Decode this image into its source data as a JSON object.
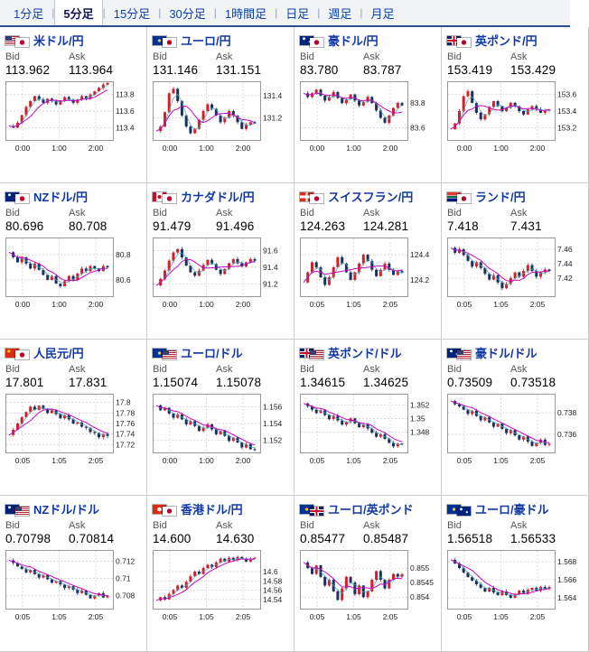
{
  "tabs": {
    "separator": "|",
    "items": [
      {
        "label": "1分足",
        "active": false
      },
      {
        "label": "5分足",
        "active": true
      },
      {
        "label": "15分足",
        "active": false
      },
      {
        "label": "30分足",
        "active": false
      },
      {
        "label": "1時間足",
        "active": false
      },
      {
        "label": "日足",
        "active": false
      },
      {
        "label": "週足",
        "active": false
      },
      {
        "label": "月足",
        "active": false
      }
    ]
  },
  "labels": {
    "bid": "Bid",
    "ask": "Ask"
  },
  "panels": [
    {
      "pair": "米ドル/円",
      "flags": [
        "us",
        "jp"
      ],
      "bid": "113.962",
      "ask": "113.964",
      "chart": {
        "type": "candlestick",
        "y_ticks": [
          "113.8",
          "113.6",
          "113.4"
        ],
        "x_ticks": [
          "0:00",
          "1:00",
          "2:00"
        ],
        "ylim": [
          113.25,
          113.95
        ],
        "closes": [
          113.42,
          113.4,
          113.46,
          113.55,
          113.65,
          113.72,
          113.78,
          113.74,
          113.7,
          113.75,
          113.72,
          113.68,
          113.73,
          113.77,
          113.74,
          113.7,
          113.74,
          113.78,
          113.75,
          113.8,
          113.84,
          113.88,
          113.92,
          113.94
        ]
      }
    },
    {
      "pair": "ユーロ/円",
      "flags": [
        "eu",
        "jp"
      ],
      "bid": "131.146",
      "ask": "131.151",
      "chart": {
        "type": "candlestick",
        "y_ticks": [
          "131.4",
          "131.2"
        ],
        "x_ticks": [
          "0:00",
          "1:00",
          "2:00"
        ],
        "ylim": [
          131.0,
          131.52
        ],
        "closes": [
          131.08,
          131.12,
          131.25,
          131.42,
          131.46,
          131.35,
          131.22,
          131.12,
          131.06,
          131.1,
          131.18,
          131.26,
          131.32,
          131.28,
          131.22,
          131.16,
          131.2,
          131.26,
          131.22,
          131.16,
          131.1,
          131.14,
          131.16,
          131.15
        ]
      }
    },
    {
      "pair": "豪ドル/円",
      "flags": [
        "au",
        "jp"
      ],
      "bid": "83.780",
      "ask": "83.787",
      "chart": {
        "type": "candlestick",
        "y_ticks": [
          "83.8",
          "83.6"
        ],
        "x_ticks": [
          "0:00",
          "1:00",
          "2:00"
        ],
        "ylim": [
          83.5,
          83.97
        ],
        "closes": [
          83.88,
          83.85,
          83.88,
          83.91,
          83.86,
          83.82,
          83.85,
          83.89,
          83.84,
          83.8,
          83.83,
          83.87,
          83.82,
          83.78,
          83.81,
          83.85,
          83.8,
          83.74,
          83.68,
          83.64,
          83.7,
          83.76,
          83.8,
          83.78
        ]
      }
    },
    {
      "pair": "英ポンド/円",
      "flags": [
        "gb",
        "jp"
      ],
      "bid": "153.419",
      "ask": "153.429",
      "chart": {
        "type": "candlestick",
        "y_ticks": [
          "153.6",
          "153.4",
          "153.2"
        ],
        "x_ticks": [
          "0:00",
          "1:00",
          "2:00"
        ],
        "ylim": [
          153.05,
          153.75
        ],
        "closes": [
          153.18,
          153.25,
          153.4,
          153.58,
          153.64,
          153.5,
          153.38,
          153.3,
          153.36,
          153.45,
          153.52,
          153.46,
          153.4,
          153.44,
          153.5,
          153.46,
          153.4,
          153.36,
          153.42,
          153.46,
          153.42,
          153.38,
          153.41,
          153.42
        ]
      }
    },
    {
      "pair": "NZドル/円",
      "flags": [
        "nz",
        "jp"
      ],
      "bid": "80.696",
      "ask": "80.708",
      "chart": {
        "type": "candlestick",
        "y_ticks": [
          "80.8",
          "80.6"
        ],
        "x_ticks": [
          "0:00",
          "1:00",
          "2:00"
        ],
        "ylim": [
          80.47,
          80.93
        ],
        "closes": [
          80.82,
          80.78,
          80.74,
          80.78,
          80.73,
          80.69,
          80.73,
          80.68,
          80.64,
          80.6,
          80.63,
          80.57,
          80.55,
          80.59,
          80.63,
          80.6,
          80.65,
          80.69,
          80.67,
          80.71,
          80.69,
          80.67,
          80.71,
          80.7
        ]
      }
    },
    {
      "pair": "カナダドル/円",
      "flags": [
        "ca",
        "jp"
      ],
      "bid": "91.479",
      "ask": "91.496",
      "chart": {
        "type": "candlestick",
        "y_ticks": [
          "91.6",
          "91.4",
          "91.2"
        ],
        "x_ticks": [
          "0:00",
          "1:00",
          "2:00"
        ],
        "ylim": [
          91.05,
          91.75
        ],
        "closes": [
          91.18,
          91.26,
          91.36,
          91.48,
          91.58,
          91.62,
          91.52,
          91.42,
          91.34,
          91.3,
          91.36,
          91.43,
          91.49,
          91.44,
          91.37,
          91.32,
          91.38,
          91.45,
          91.5,
          91.45,
          91.41,
          91.46,
          91.5,
          91.48
        ]
      }
    },
    {
      "pair": "スイスフラン/円",
      "flags": [
        "ch",
        "jp"
      ],
      "bid": "124.263",
      "ask": "124.281",
      "chart": {
        "type": "candlestick",
        "y_ticks": [
          "124.4",
          "124.2"
        ],
        "x_ticks": [
          "0:05",
          "1:05",
          "2:05"
        ],
        "ylim": [
          124.07,
          124.53
        ],
        "closes": [
          124.18,
          124.26,
          124.34,
          124.3,
          124.22,
          124.16,
          124.22,
          124.3,
          124.38,
          124.33,
          124.26,
          124.2,
          124.26,
          124.33,
          124.4,
          124.35,
          124.28,
          124.23,
          124.28,
          124.33,
          124.28,
          124.24,
          124.27,
          124.26
        ]
      }
    },
    {
      "pair": "ランド/円",
      "flags": [
        "za",
        "jp"
      ],
      "bid": "7.418",
      "ask": "7.431",
      "chart": {
        "type": "candlestick",
        "y_ticks": [
          "7.46",
          "7.44",
          "7.42"
        ],
        "x_ticks": [
          "0:05",
          "1:05",
          "2:05"
        ],
        "ylim": [
          7.395,
          7.475
        ],
        "closes": [
          7.462,
          7.455,
          7.46,
          7.452,
          7.444,
          7.436,
          7.442,
          7.434,
          7.426,
          7.418,
          7.424,
          7.414,
          7.406,
          7.412,
          7.42,
          7.428,
          7.422,
          7.43,
          7.438,
          7.43,
          7.422,
          7.428,
          7.432,
          7.43
        ]
      }
    },
    {
      "pair": "人民元/円",
      "flags": [
        "cn",
        "jp"
      ],
      "bid": "17.801",
      "ask": "17.831",
      "chart": {
        "type": "candlestick",
        "y_ticks": [
          "17.8",
          "17.78",
          "17.76",
          "17.74",
          "17.72"
        ],
        "x_ticks": [
          "0:05",
          "1:05",
          "2:05"
        ],
        "ylim": [
          17.705,
          17.815
        ],
        "closes": [
          17.738,
          17.748,
          17.76,
          17.772,
          17.782,
          17.792,
          17.786,
          17.794,
          17.788,
          17.78,
          17.786,
          17.778,
          17.77,
          17.776,
          17.768,
          17.76,
          17.762,
          17.754,
          17.752,
          17.744,
          17.742,
          17.734,
          17.74,
          17.736
        ]
      }
    },
    {
      "pair": "ユーロ/ドル",
      "flags": [
        "eu",
        "us"
      ],
      "bid": "1.15074",
      "ask": "1.15078",
      "chart": {
        "type": "candlestick",
        "y_ticks": [
          "1.156",
          "1.154",
          "1.152"
        ],
        "x_ticks": [
          "0:00",
          "1:00",
          "2:00"
        ],
        "ylim": [
          1.1505,
          1.1575
        ],
        "closes": [
          1.1562,
          1.1556,
          1.1559,
          1.1552,
          1.1547,
          1.1551,
          1.1545,
          1.1539,
          1.1543,
          1.1537,
          1.1531,
          1.1535,
          1.1539,
          1.1533,
          1.1527,
          1.1531,
          1.1525,
          1.1519,
          1.1523,
          1.1517,
          1.1511,
          1.1515,
          1.1509,
          1.1508
        ]
      }
    },
    {
      "pair": "英ポンド/ドル",
      "flags": [
        "gb",
        "us"
      ],
      "bid": "1.34615",
      "ask": "1.34625",
      "chart": {
        "type": "candlestick",
        "y_ticks": [
          "1.352",
          "1.35",
          "1.348"
        ],
        "x_ticks": [
          "0:05",
          "1:05",
          "2:05"
        ],
        "ylim": [
          1.345,
          1.3535
        ],
        "closes": [
          1.3522,
          1.3518,
          1.3513,
          1.3508,
          1.3512,
          1.3505,
          1.3499,
          1.3504,
          1.3497,
          1.3491,
          1.3495,
          1.35,
          1.3493,
          1.3487,
          1.3491,
          1.3485,
          1.3479,
          1.3473,
          1.3477,
          1.347,
          1.3464,
          1.3459,
          1.3463,
          1.3462
        ]
      }
    },
    {
      "pair": "豪ドル/ドル",
      "flags": [
        "au",
        "us"
      ],
      "bid": "0.73509",
      "ask": "0.73518",
      "chart": {
        "type": "candlestick",
        "y_ticks": [
          "0.738",
          "0.736"
        ],
        "x_ticks": [
          "0:05",
          "1:05",
          "2:05"
        ],
        "ylim": [
          0.7343,
          0.7397
        ],
        "closes": [
          0.7391,
          0.7388,
          0.7386,
          0.7383,
          0.7379,
          0.7382,
          0.7377,
          0.7373,
          0.7376,
          0.7371,
          0.7367,
          0.737,
          0.7365,
          0.7361,
          0.7364,
          0.7359,
          0.7355,
          0.7358,
          0.7353,
          0.7349,
          0.7352,
          0.7355,
          0.735,
          0.7351
        ]
      }
    },
    {
      "pair": "NZドル/ドル",
      "flags": [
        "nz",
        "us"
      ],
      "bid": "0.70798",
      "ask": "0.70814",
      "chart": {
        "type": "candlestick",
        "y_ticks": [
          "0.712",
          "0.71",
          "0.708"
        ],
        "x_ticks": [
          "0:05",
          "1:05",
          "2:05"
        ],
        "ylim": [
          0.7065,
          0.7132
        ],
        "closes": [
          0.7121,
          0.7118,
          0.7114,
          0.7111,
          0.7107,
          0.711,
          0.7105,
          0.7101,
          0.7104,
          0.7099,
          0.7095,
          0.7097,
          0.7093,
          0.7089,
          0.7091,
          0.7087,
          0.7083,
          0.7086,
          0.7081,
          0.7077,
          0.708,
          0.7083,
          0.7078,
          0.708
        ]
      }
    },
    {
      "pair": "香港ドル/円",
      "flags": [
        "hk",
        "jp"
      ],
      "bid": "14.600",
      "ask": "14.630",
      "chart": {
        "type": "candlestick",
        "y_ticks": [
          "14.6",
          "14.58",
          "14.56",
          "14.54"
        ],
        "x_ticks": [
          "0:05",
          "1:05",
          "2:05"
        ],
        "ylim": [
          14.52,
          14.645
        ],
        "closes": [
          14.538,
          14.545,
          14.54,
          14.552,
          14.56,
          14.57,
          14.565,
          14.578,
          14.59,
          14.6,
          14.595,
          14.608,
          14.615,
          14.61,
          14.62,
          14.628,
          14.622,
          14.63,
          14.625,
          14.632,
          14.628,
          14.622,
          14.628,
          14.63
        ]
      }
    },
    {
      "pair": "ユーロ/英ポンド",
      "flags": [
        "eu",
        "gb"
      ],
      "bid": "0.85477",
      "ask": "0.85487",
      "chart": {
        "type": "candlestick",
        "y_ticks": [
          "0.855",
          "0.8545",
          "0.854"
        ],
        "x_ticks": [
          "0:05",
          "1:05",
          "2:05"
        ],
        "ylim": [
          0.8536,
          0.8556
        ],
        "closes": [
          0.8552,
          0.855,
          0.8548,
          0.8551,
          0.8547,
          0.8544,
          0.8546,
          0.8542,
          0.8539,
          0.8543,
          0.8547,
          0.8545,
          0.8541,
          0.8544,
          0.854,
          0.8542,
          0.8546,
          0.8549,
          0.8546,
          0.8543,
          0.8546,
          0.8548,
          0.8547,
          0.8548
        ]
      }
    },
    {
      "pair": "ユーロ/豪ドル",
      "flags": [
        "eu",
        "au"
      ],
      "bid": "1.56518",
      "ask": "1.56533",
      "chart": {
        "type": "candlestick",
        "y_ticks": [
          "1.568",
          "1.566",
          "1.564"
        ],
        "x_ticks": [
          "0:05",
          "1:05",
          "2:05"
        ],
        "ylim": [
          1.5628,
          1.5692
        ],
        "closes": [
          1.5682,
          1.5678,
          1.5673,
          1.5668,
          1.5663,
          1.5659,
          1.5655,
          1.5651,
          1.5647,
          1.5651,
          1.5646,
          1.5643,
          1.5647,
          1.5643,
          1.564,
          1.5644,
          1.5648,
          1.5645,
          1.5649,
          1.5651,
          1.5648,
          1.5652,
          1.565,
          1.5652
        ]
      }
    }
  ]
}
